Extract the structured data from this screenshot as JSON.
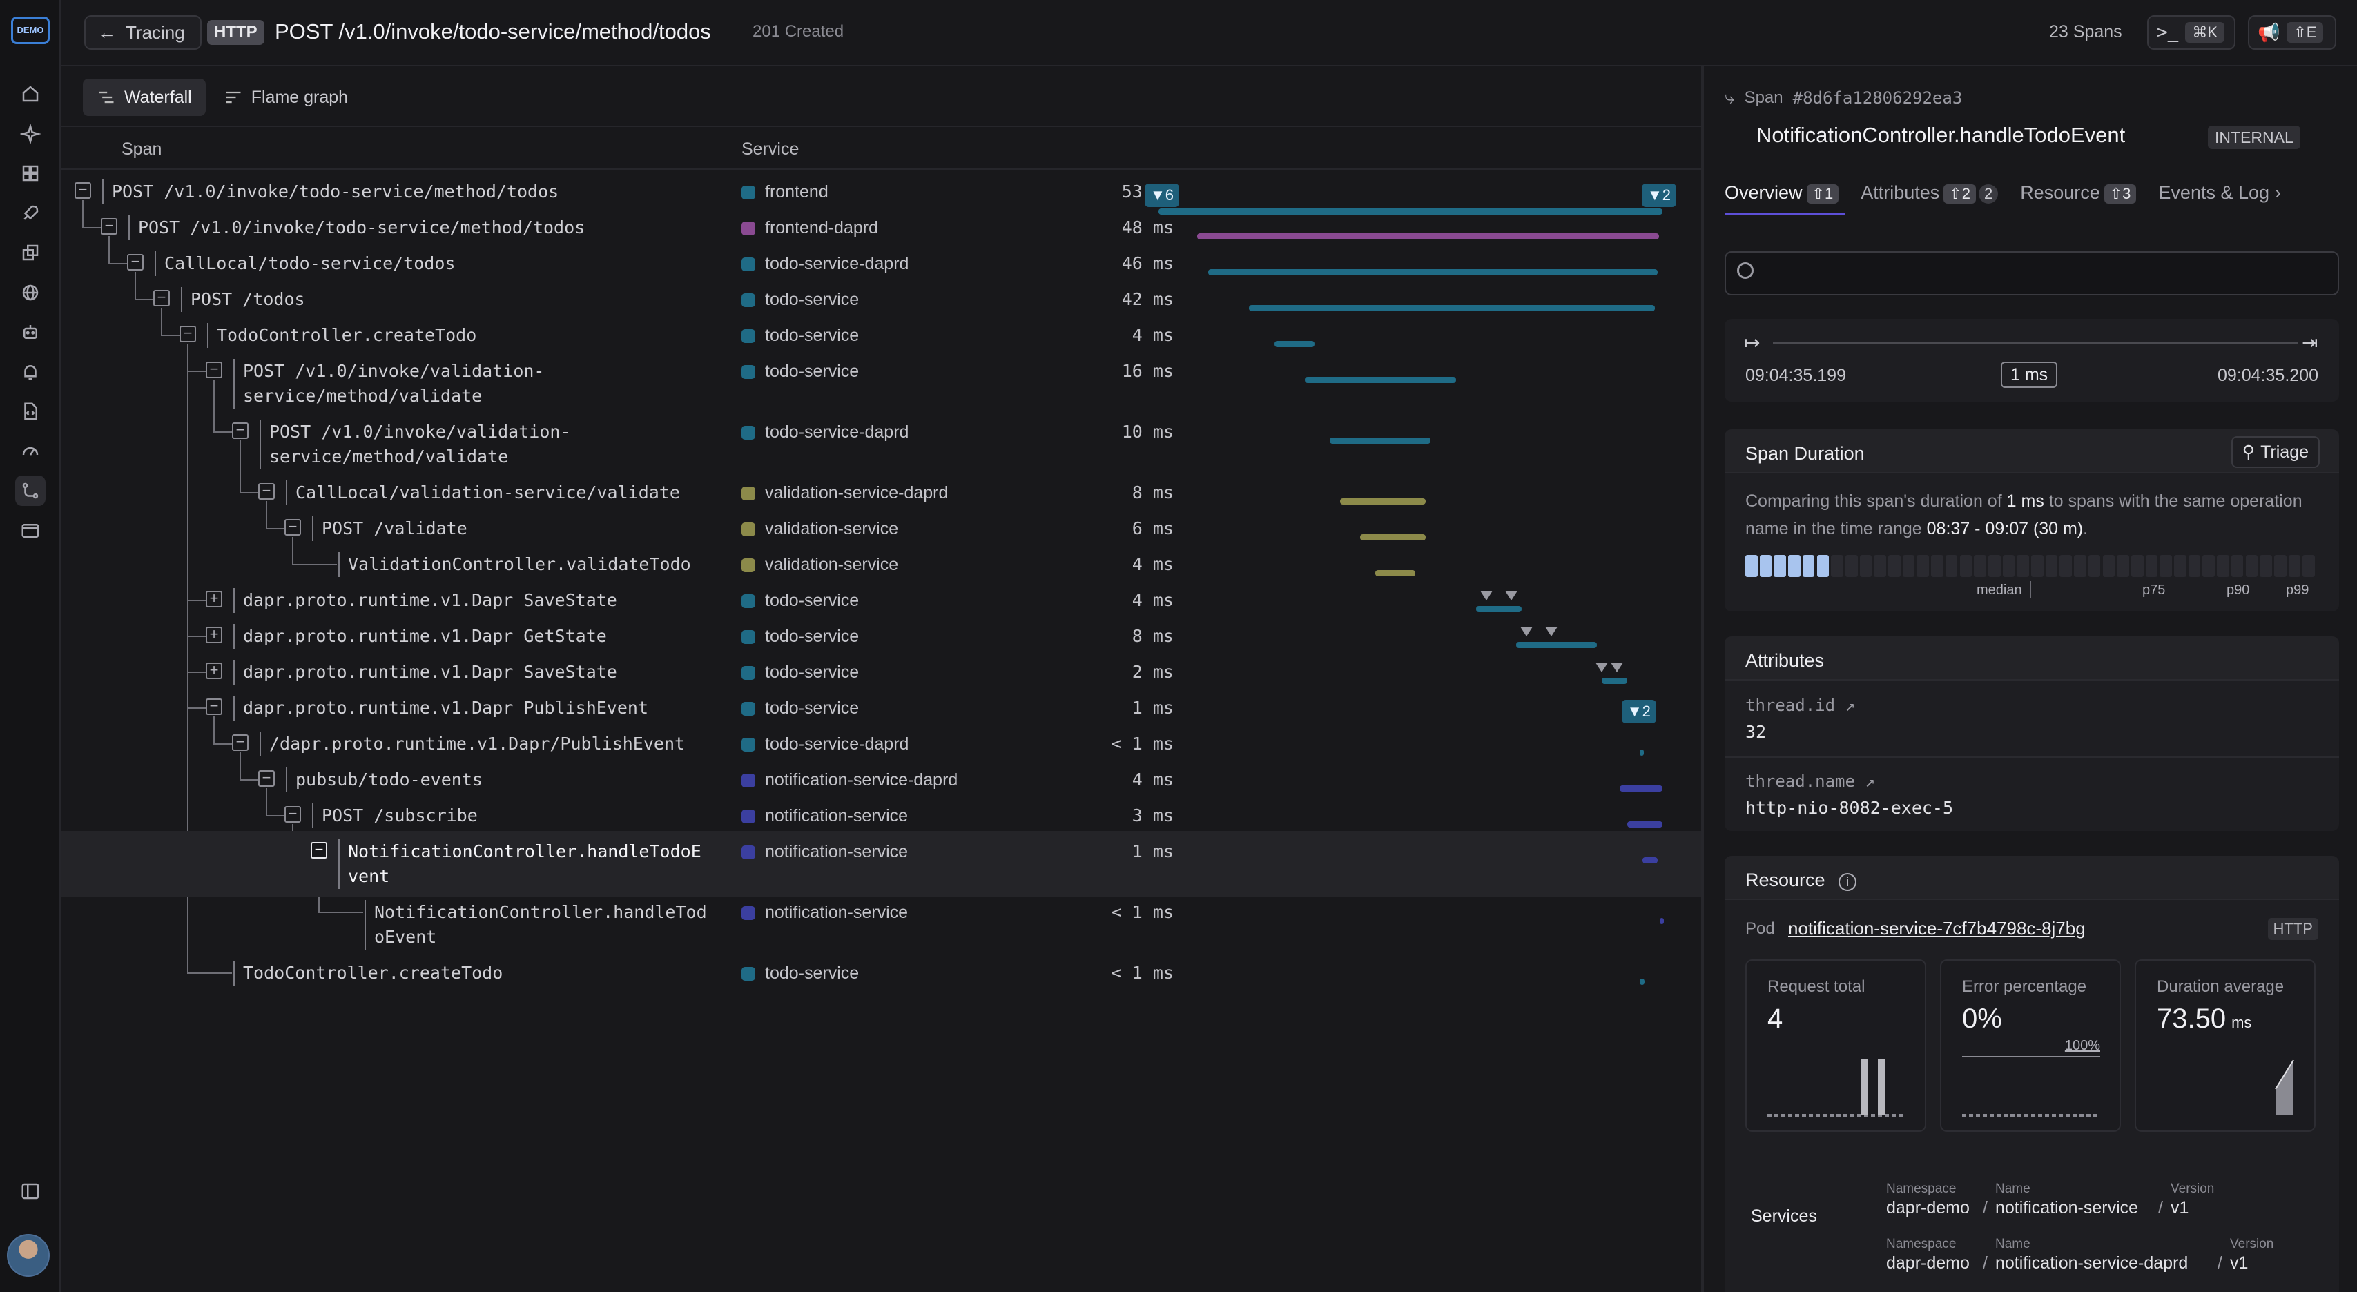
{
  "rail": {
    "logo_text": "DEMO",
    "items": [
      "home-icon",
      "sparkle-icon",
      "dashboard-icon",
      "rocket-icon",
      "puzzle-icon",
      "globe-icon",
      "robot-icon",
      "bell-icon",
      "code-file-icon",
      "gauge-icon",
      "route-icon",
      "browser-icon"
    ],
    "active_item": "route-icon",
    "bottom_icon": "sidebar-collapse-icon"
  },
  "header": {
    "back_label": "Tracing",
    "protocol_badge": "HTTP",
    "title": "POST /v1.0/invoke/todo-service/method/todos",
    "status": "201 Created",
    "span_count": "23 Spans",
    "cmd_shortcut": "⌘K",
    "share_shortcut": "⇧E"
  },
  "view_tabs": [
    {
      "label": "Waterfall",
      "active": true
    },
    {
      "label": "Flame graph",
      "active": false
    }
  ],
  "columns": {
    "span": "Span",
    "service": "Service"
  },
  "service_colors": {
    "frontend": "#1f6b86",
    "frontend-daprd": "#8a4a92",
    "todo-service-daprd": "#1f6b86",
    "todo-service": "#1f6b86",
    "validation-service-daprd": "#8c8a4a",
    "validation-service": "#8c8a4a",
    "notification-service-daprd": "#3b3fa0",
    "notification-service": "#3b3fa0"
  },
  "spans": [
    {
      "name": "POST /v1.0/invoke/todo-service/method/todos",
      "depth": 0,
      "service": "frontend",
      "duration": "53 ms",
      "toggle": "minus",
      "lines": 1,
      "bar": [
        0.0,
        1.0
      ],
      "badge": "6",
      "badge_end": "2"
    },
    {
      "name": "POST /v1.0/invoke/todo-service/method/todos",
      "depth": 1,
      "service": "frontend-daprd",
      "duration": "48 ms",
      "toggle": "minus",
      "lines": 1,
      "bar": [
        0.077,
        0.993
      ]
    },
    {
      "name": "CallLocal/todo-service/todos",
      "depth": 2,
      "service": "todo-service-daprd",
      "duration": "46 ms",
      "toggle": "minus",
      "lines": 1,
      "bar": [
        0.098,
        0.99
      ]
    },
    {
      "name": "POST /todos",
      "depth": 3,
      "service": "todo-service",
      "duration": "42 ms",
      "toggle": "minus",
      "lines": 1,
      "bar": [
        0.18,
        0.985
      ]
    },
    {
      "name": "TodoController.createTodo",
      "depth": 4,
      "service": "todo-service",
      "duration": "4 ms",
      "toggle": "minus",
      "lines": 1,
      "bar": [
        0.23,
        0.31
      ]
    },
    {
      "name": "POST /v1.0/invoke/validation-\nservice/method/validate",
      "depth": 5,
      "service": "todo-service",
      "duration": "16 ms",
      "toggle": "minus",
      "lines": 2,
      "bar": [
        0.29,
        0.59
      ]
    },
    {
      "name": "POST /v1.0/invoke/validation-\nservice/method/validate",
      "depth": 6,
      "service": "todo-service-daprd",
      "duration": "10 ms",
      "toggle": "minus",
      "lines": 2,
      "bar": [
        0.34,
        0.54
      ]
    },
    {
      "name": "CallLocal/validation-service/validate",
      "depth": 7,
      "service": "validation-service-daprd",
      "duration": "8 ms",
      "toggle": "minus",
      "lines": 1,
      "bar": [
        0.36,
        0.53
      ]
    },
    {
      "name": "POST /validate",
      "depth": 8,
      "service": "validation-service",
      "duration": "6 ms",
      "toggle": "minus",
      "lines": 1,
      "bar": [
        0.4,
        0.53
      ]
    },
    {
      "name": "ValidationController.validateTodo",
      "depth": 9,
      "service": "validation-service",
      "duration": "4 ms",
      "toggle": "none",
      "lines": 1,
      "bar": [
        0.43,
        0.51
      ]
    },
    {
      "name": "dapr.proto.runtime.v1.Dapr SaveState",
      "depth": 5,
      "service": "todo-service",
      "duration": "4 ms",
      "toggle": "plus",
      "lines": 1,
      "bar": [
        0.63,
        0.72
      ],
      "markers": [
        0.65,
        0.7
      ]
    },
    {
      "name": "dapr.proto.runtime.v1.Dapr GetState",
      "depth": 5,
      "service": "todo-service",
      "duration": "8 ms",
      "toggle": "plus",
      "lines": 1,
      "bar": [
        0.71,
        0.87
      ],
      "markers": [
        0.73,
        0.78
      ]
    },
    {
      "name": "dapr.proto.runtime.v1.Dapr SaveState",
      "depth": 5,
      "service": "todo-service",
      "duration": "2 ms",
      "toggle": "plus",
      "lines": 1,
      "bar": [
        0.88,
        0.93
      ],
      "markers": [
        0.88,
        0.91
      ]
    },
    {
      "name": "dapr.proto.runtime.v1.Dapr PublishEvent",
      "depth": 5,
      "service": "todo-service",
      "duration": "1 ms",
      "toggle": "minus",
      "lines": 1,
      "bar": [
        0.94,
        0.96
      ],
      "badge_end": "2"
    },
    {
      "name": "/dapr.proto.runtime.v1.Dapr/PublishEvent",
      "depth": 6,
      "service": "todo-service-daprd",
      "duration": "< 1 ms",
      "toggle": "minus",
      "lines": 1,
      "bar": [
        0.955,
        0.96
      ]
    },
    {
      "name": "pubsub/todo-events",
      "depth": 7,
      "service": "notification-service-daprd",
      "duration": "4 ms",
      "toggle": "minus",
      "lines": 1,
      "bar": [
        0.915,
        1.0
      ]
    },
    {
      "name": "POST /subscribe",
      "depth": 8,
      "service": "notification-service",
      "duration": "3 ms",
      "toggle": "minus",
      "lines": 1,
      "bar": [
        0.93,
        1.0
      ]
    },
    {
      "name": "NotificationController.handleTodoE\nvent",
      "depth": 9,
      "service": "notification-service",
      "duration": "1 ms",
      "toggle": "minus",
      "lines": 2,
      "bar": [
        0.96,
        0.99
      ],
      "selected": true
    },
    {
      "name": "NotificationController.handleTod\noEvent",
      "depth": 10,
      "service": "notification-service",
      "duration": "< 1 ms",
      "toggle": "none",
      "lines": 2,
      "bar": [
        0.995,
        1.0
      ]
    },
    {
      "name": "TodoController.createTodo",
      "depth": 5,
      "service": "todo-service",
      "duration": "< 1 ms",
      "toggle": "none",
      "lines": 1,
      "bar": [
        0.955,
        0.965
      ]
    }
  ],
  "detail": {
    "span_label": "Span",
    "span_id": "#8d6fa12806292ea3",
    "span_name": "NotificationController.handleTodoEvent",
    "kind": "INTERNAL",
    "tabs": [
      {
        "label": "Overview",
        "pill": "⇧1",
        "active": true
      },
      {
        "label": "Attributes",
        "pill": "⇧2",
        "count": "2",
        "active": false
      },
      {
        "label": "Resource",
        "pill": "⇧3",
        "active": false
      },
      {
        "label": "Events & Log",
        "active": false
      }
    ],
    "search_placeholder": "",
    "timeline": {
      "start": "09:04:35.199",
      "end": "09:04:35.200",
      "duration": "1 ms"
    },
    "span_duration": {
      "title": "Span Duration",
      "triage_label": "Triage",
      "text_1": "Comparing this span's duration of ",
      "text_bold": "1 ms",
      "text_2": " to spans with the same operation name in the time range ",
      "range": "08:37 - 09:07 (30 m)",
      "text_3": ".",
      "percentile_labels": [
        "median",
        "p75",
        "p90",
        "p99"
      ],
      "filled_segments": 6,
      "total_segments": 40
    },
    "attributes": {
      "title": "Attributes",
      "items": [
        {
          "key": "thread.id",
          "value": "32"
        },
        {
          "key": "thread.name",
          "value": "http-nio-8082-exec-5"
        }
      ]
    },
    "resource": {
      "title": "Resource",
      "pod_label": "Pod",
      "pod_value": "notification-service-7cf7b4798c-8j7bg",
      "pod_badge": "HTTP",
      "metrics": [
        {
          "label": "Request total",
          "value": "4",
          "unit": ""
        },
        {
          "label": "Error percentage",
          "value": "0%",
          "unit": "",
          "scale": "100%"
        },
        {
          "label": "Duration average",
          "value": "73.50",
          "unit": "ms"
        }
      ],
      "services_label": "Services",
      "services": [
        {
          "namespace_label": "Namespace",
          "namespace": "dapr-demo",
          "name_label": "Name",
          "name": "notification-service",
          "version_label": "Version",
          "version": "v1"
        },
        {
          "namespace_label": "Namespace",
          "namespace": "dapr-demo",
          "name_label": "Name",
          "name": "notification-service-daprd",
          "version_label": "Version",
          "version": "v1"
        }
      ]
    }
  }
}
